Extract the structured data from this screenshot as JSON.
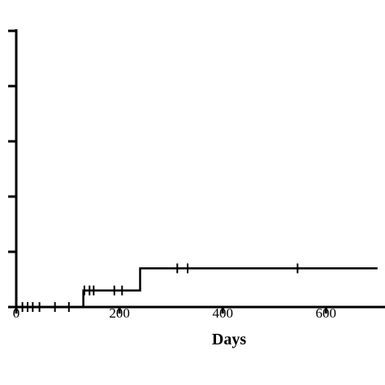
{
  "chart_data": {
    "type": "line",
    "step": true,
    "xlabel": "Days",
    "ylabel": "",
    "xlim": [
      0,
      700
    ],
    "ylim": [
      0,
      50
    ],
    "x_ticks": [
      0,
      200,
      400,
      600
    ],
    "x_tick_labels": [
      "0",
      "200",
      "400",
      "600"
    ],
    "y_ticks": [
      0,
      10,
      20,
      30,
      40,
      50
    ],
    "y_tick_labels": [
      "",
      "",
      "",
      "",
      "",
      ""
    ],
    "grid": false,
    "series": [
      {
        "x": [
          0,
          130,
          130,
          240,
          240,
          700
        ],
        "y": [
          0,
          0,
          3,
          3,
          7,
          7
        ],
        "censor_x": [
          12,
          22,
          32,
          45,
          75,
          102,
          132,
          142,
          150,
          190,
          205,
          312,
          332,
          545
        ],
        "color": "#000000"
      }
    ]
  }
}
